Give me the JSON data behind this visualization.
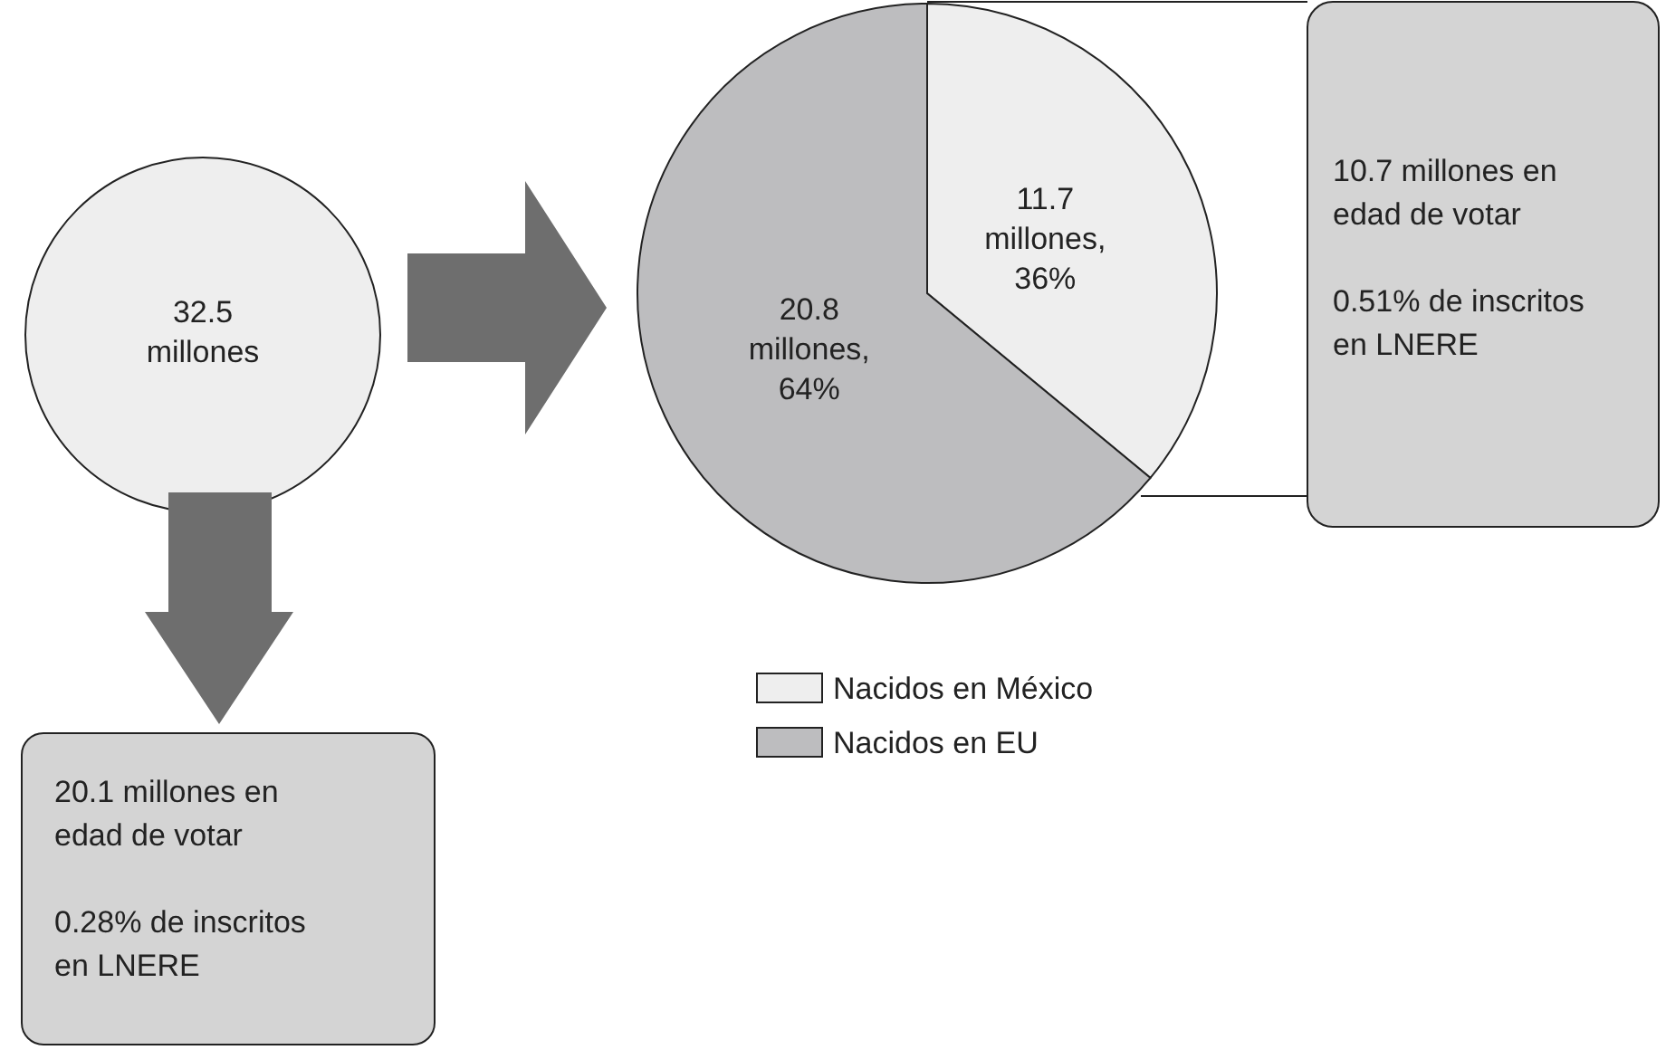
{
  "chart_data": {
    "type": "pie",
    "categories": [
      "Nacidos en México",
      "Nacidos en EU"
    ],
    "values": [
      11.7,
      20.8
    ],
    "value_labels": [
      "11.7\nmillones,\n36%",
      "20.8\nmillones,\n64%"
    ],
    "colors": [
      "#eeeeee",
      "#bdbdbf"
    ],
    "legend": "bottom",
    "annotations": [
      "32.5\nmillones",
      "20.1 millones en\nedad de votar",
      "0.28% de inscritos\nen LNERE",
      "10.7 millones en\nedad de votar",
      "0.51% de inscritos\nen LNERE"
    ]
  }
}
